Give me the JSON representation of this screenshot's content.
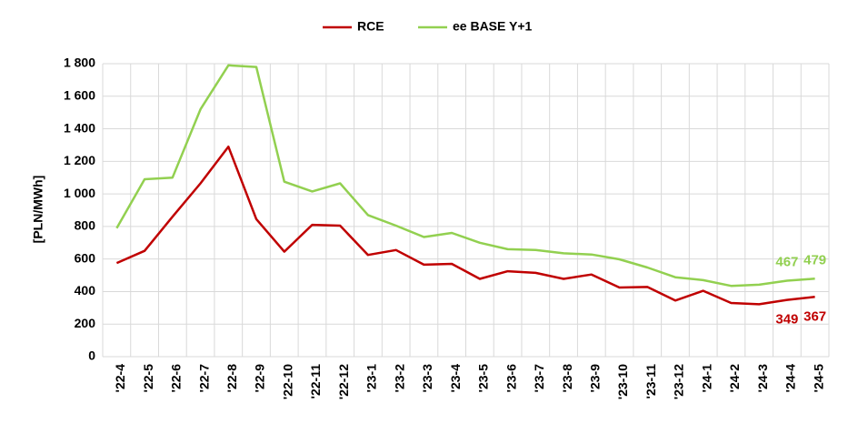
{
  "chart_data": {
    "type": "line",
    "ylabel": "[PLN/MWh]",
    "ylim": [
      0,
      1800
    ],
    "yticks": [
      0,
      200,
      400,
      600,
      800,
      1000,
      1200,
      1400,
      1600,
      1800
    ],
    "ytick_labels": [
      "0",
      "200",
      "400",
      "600",
      "800",
      "1 000",
      "1 200",
      "1 400",
      "1 600",
      "1 800"
    ],
    "grid": true,
    "legend_position": "top-center",
    "categories": [
      "'22-4",
      "'22-5",
      "'22-6",
      "'22-7",
      "'22-8",
      "'22-9",
      "'22-10",
      "'22-11",
      "'22-12",
      "'23-1",
      "'23-2",
      "'23-3",
      "'23-4",
      "'23-5",
      "'23-6",
      "'23-7",
      "'23-8",
      "'23-9",
      "'23-10",
      "'23-11",
      "'23-12",
      "'24-1",
      "'24-2",
      "'24-3",
      "'24-4",
      "'24-5"
    ],
    "series": [
      {
        "name": "RCE",
        "color": "#c00000",
        "values": [
          575,
          650,
          860,
          1065,
          1290,
          845,
          645,
          810,
          805,
          625,
          655,
          565,
          570,
          478,
          525,
          515,
          478,
          505,
          425,
          428,
          345,
          405,
          330,
          322,
          349,
          367
        ],
        "data_labels": [
          {
            "index": 24,
            "text": "349"
          },
          {
            "index": 25,
            "text": "367"
          }
        ]
      },
      {
        "name": "ee BASE Y+1",
        "color": "#92d050",
        "values": [
          790,
          1090,
          1100,
          1520,
          1790,
          1780,
          1075,
          1015,
          1065,
          870,
          805,
          735,
          760,
          700,
          660,
          655,
          635,
          628,
          598,
          548,
          488,
          470,
          435,
          442,
          467,
          479
        ],
        "data_labels": [
          {
            "index": 24,
            "text": "467"
          },
          {
            "index": 25,
            "text": "479"
          }
        ]
      }
    ]
  }
}
